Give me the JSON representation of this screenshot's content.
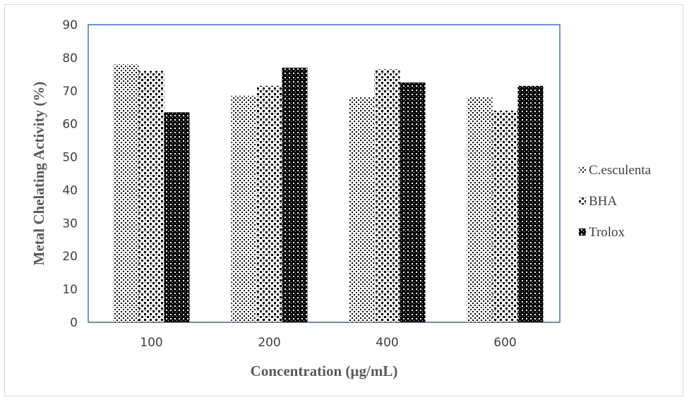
{
  "chart_data": {
    "type": "bar",
    "categories": [
      "100",
      "200",
      "400",
      "600"
    ],
    "series": [
      {
        "name": "C.esculenta",
        "values": [
          78,
          68.5,
          68,
          68
        ]
      },
      {
        "name": "BHA",
        "values": [
          76,
          71.5,
          76.5,
          64
        ]
      },
      {
        "name": "Trolox",
        "values": [
          63.5,
          77,
          72.5,
          71.5
        ]
      }
    ],
    "xlabel": "Concentration (µg/mL)",
    "ylabel": "Metal Chelating Activity (%)",
    "ylim": [
      0,
      90
    ],
    "yticks": [
      "0",
      "10",
      "20",
      "30",
      "40",
      "50",
      "60",
      "70",
      "80",
      "90"
    ],
    "grid": false,
    "legend_position": "right"
  }
}
